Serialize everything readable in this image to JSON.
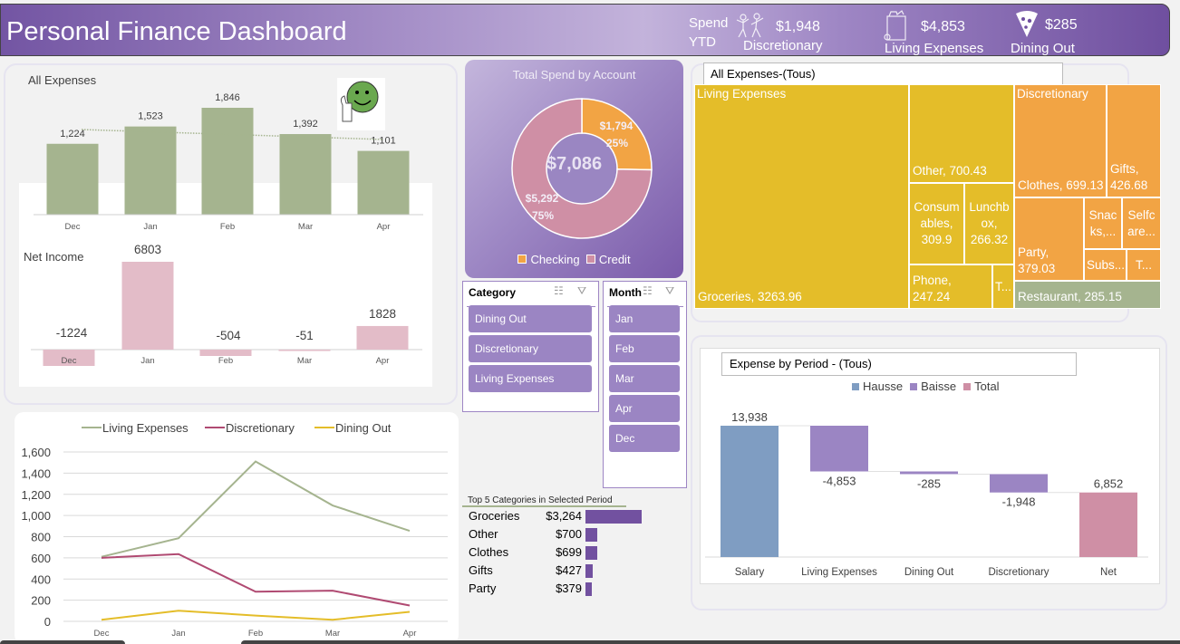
{
  "header": {
    "title": "Personal Finance Dashboard",
    "spend_label_1": "Spend",
    "spend_label_2": "YTD",
    "kpis": [
      {
        "value": "$1,948",
        "label": "Discretionary",
        "icon": "dancing-people-icon"
      },
      {
        "value": "$4,853",
        "label": "Living Expenses",
        "icon": "grocery-bag-icon"
      },
      {
        "value": "$285",
        "label": "Dining Out",
        "icon": "pizza-slice-icon"
      }
    ]
  },
  "all_expenses_chart": {
    "title": "All Expenses",
    "indicator_icon": "thumbs-up-smiley-icon",
    "chart_data": {
      "type": "bar",
      "title": "All Expenses",
      "categories": [
        "Dec",
        "Jan",
        "Feb",
        "Mar",
        "Apr"
      ],
      "values": [
        1224,
        1523,
        1846,
        1392,
        1101
      ],
      "value_labels": [
        "1,224",
        "1,523",
        "1,846",
        "1,392",
        "1,101"
      ],
      "trendline": "dotted linear",
      "ylim": [
        0,
        2000
      ]
    }
  },
  "net_income_chart": {
    "title": "Net Income",
    "chart_data": {
      "type": "bar",
      "title": "Net Income",
      "categories": [
        "Dec",
        "Jan",
        "Feb",
        "Mar",
        "Apr"
      ],
      "values": [
        -1224,
        6803,
        -504,
        -51,
        1828
      ],
      "value_labels": [
        "-1224",
        "6803",
        "-504",
        "-51",
        "1828"
      ]
    }
  },
  "line_chart": {
    "chart_data": {
      "type": "line",
      "categories": [
        "Dec",
        "Jan",
        "Feb",
        "Mar",
        "Apr"
      ],
      "yticks": [
        "0",
        "200",
        "400",
        "600",
        "800",
        "1,000",
        "1,200",
        "1,400",
        "1,600"
      ],
      "ylim": [
        0,
        1600
      ],
      "legend_position": "top",
      "series": [
        {
          "name": "Living Expenses",
          "color": "#a5b48f",
          "values": [
            610,
            785,
            1510,
            1095,
            855
          ]
        },
        {
          "name": "Discretionary",
          "color": "#b04a72",
          "values": [
            600,
            635,
            280,
            290,
            150
          ]
        },
        {
          "name": "Dining Out",
          "color": "#e4bd29",
          "values": [
            15,
            100,
            55,
            15,
            90
          ]
        }
      ]
    }
  },
  "donut": {
    "title": "Total Spend by Account",
    "total": "$7,086",
    "chart_data": {
      "type": "pie",
      "title": "Total Spend by Account",
      "slices": [
        {
          "name": "Checking",
          "value": 1794,
          "label": "$1,794",
          "percent": "25%",
          "color": "#f2a444"
        },
        {
          "name": "Credit",
          "value": 5292,
          "label": "$5,292",
          "percent": "75%",
          "color": "#cf8fa5"
        }
      ]
    }
  },
  "slicers": {
    "category": {
      "title": "Category",
      "items": [
        "Dining Out",
        "Discretionary",
        "Living Expenses"
      ]
    },
    "month": {
      "title": "Month",
      "items": [
        "Jan",
        "Feb",
        "Mar",
        "Apr",
        "Dec"
      ]
    }
  },
  "top5": {
    "title": "Top 5 Categories in Selected Period",
    "chart_data": {
      "type": "bar",
      "categories": [
        "Groceries",
        "Other",
        "Clothes",
        "Gifts",
        "Party"
      ],
      "values": [
        3264,
        700,
        699,
        427,
        379
      ],
      "value_labels": [
        "$3,264",
        "$700",
        "$699",
        "$427",
        "$379"
      ]
    }
  },
  "treemap": {
    "filter_title": "All Expenses-(Tous)",
    "groups": [
      {
        "name": "Living Expenses",
        "color": "#e4bd29"
      },
      {
        "name": "Discretionary",
        "color": "#f2a444"
      },
      {
        "name": "Dining Out",
        "color": "#a5b48f"
      }
    ],
    "tiles": [
      {
        "label": "Groceries, 3263.96",
        "group": "Living Expenses",
        "value": 3263.96
      },
      {
        "label": "Other, 700.43",
        "group": "Living Expenses",
        "value": 700.43
      },
      {
        "label": "Consum ables, 309.9",
        "group": "Living Expenses",
        "value": 309.9
      },
      {
        "label": "Lunchb ox, 266.32",
        "group": "Living Expenses",
        "value": 266.32
      },
      {
        "label": "Phone, 247.24",
        "group": "Living Expenses",
        "value": 247.24
      },
      {
        "label": "T...",
        "group": "Living Expenses"
      },
      {
        "label": "Clothes, 699.13",
        "group": "Discretionary",
        "value": 699.13
      },
      {
        "label": "Gifts, 426.68",
        "group": "Discretionary",
        "value": 426.68
      },
      {
        "label": "Party, 379.03",
        "group": "Discretionary",
        "value": 379.03
      },
      {
        "label": "Snac ks,...",
        "group": "Discretionary"
      },
      {
        "label": "Selfc are...",
        "group": "Discretionary"
      },
      {
        "label": "Subs...",
        "group": "Discretionary"
      },
      {
        "label": "T...",
        "group": "Discretionary"
      },
      {
        "label": "Restaurant, 285.15",
        "group": "Dining Out",
        "value": 285.15
      }
    ]
  },
  "waterfall": {
    "filter_title": "Expense by Period - (Tous)",
    "legend": [
      {
        "name": "Hausse",
        "color": "#7f9dc2"
      },
      {
        "name": "Baisse",
        "color": "#9b85c3"
      },
      {
        "name": "Total",
        "color": "#cf8fa5"
      }
    ],
    "chart_data": {
      "type": "bar",
      "subtype": "waterfall",
      "categories": [
        "Salary",
        "Living Expenses",
        "Dining Out",
        "Discretionary",
        "Net"
      ],
      "values": [
        13938,
        -4853,
        -285,
        -1948,
        6852
      ],
      "value_labels": [
        "13,938",
        "-4,853",
        "-285",
        "-1,948",
        "6,852"
      ],
      "kinds": [
        "Hausse",
        "Baisse",
        "Baisse",
        "Baisse",
        "Total"
      ],
      "ylim": [
        0,
        14000
      ]
    }
  }
}
